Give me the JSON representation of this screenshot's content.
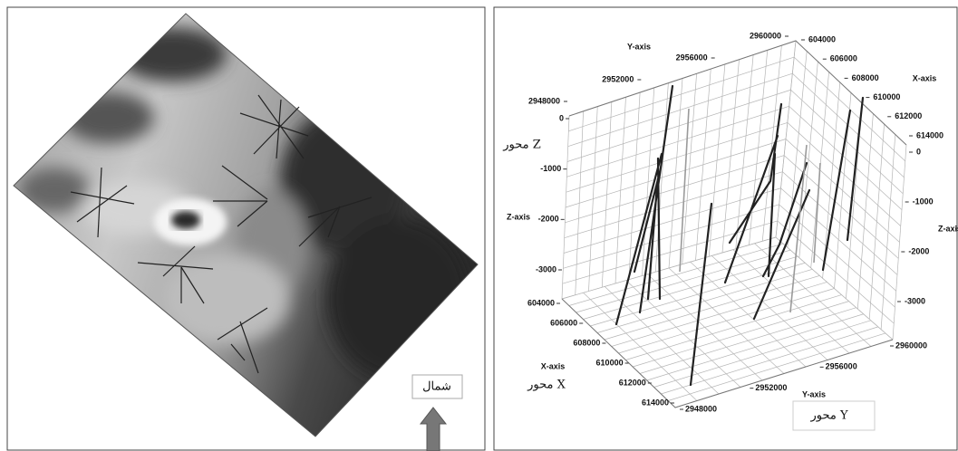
{
  "left_panel": {
    "north_label": "شمال"
  },
  "right_panel": {
    "y_axis": {
      "title_top": "Y-axis",
      "ticks_top": [
        2948000,
        2952000,
        2956000,
        2960000
      ],
      "title_bottom": "Y-axis",
      "ticks_bottom": [
        2948000,
        2952000,
        2956000,
        2960000
      ],
      "persian_label": "محور Y"
    },
    "x_axis": {
      "title_top": "X-axis",
      "ticks_top": [
        604000,
        606000,
        608000,
        610000,
        612000,
        614000
      ],
      "title_bottom": "X-axis",
      "ticks_bottom": [
        604000,
        606000,
        608000,
        610000,
        612000,
        614000
      ],
      "persian_label": "محور X"
    },
    "z_axis": {
      "title_left": "Z-axis",
      "ticks_left": [
        0,
        -1000,
        -2000,
        -3000
      ],
      "title_right": "Z-axis",
      "ticks_right": [
        0,
        -1000,
        -2000,
        -3000
      ],
      "persian_label": "محور Z"
    }
  }
}
